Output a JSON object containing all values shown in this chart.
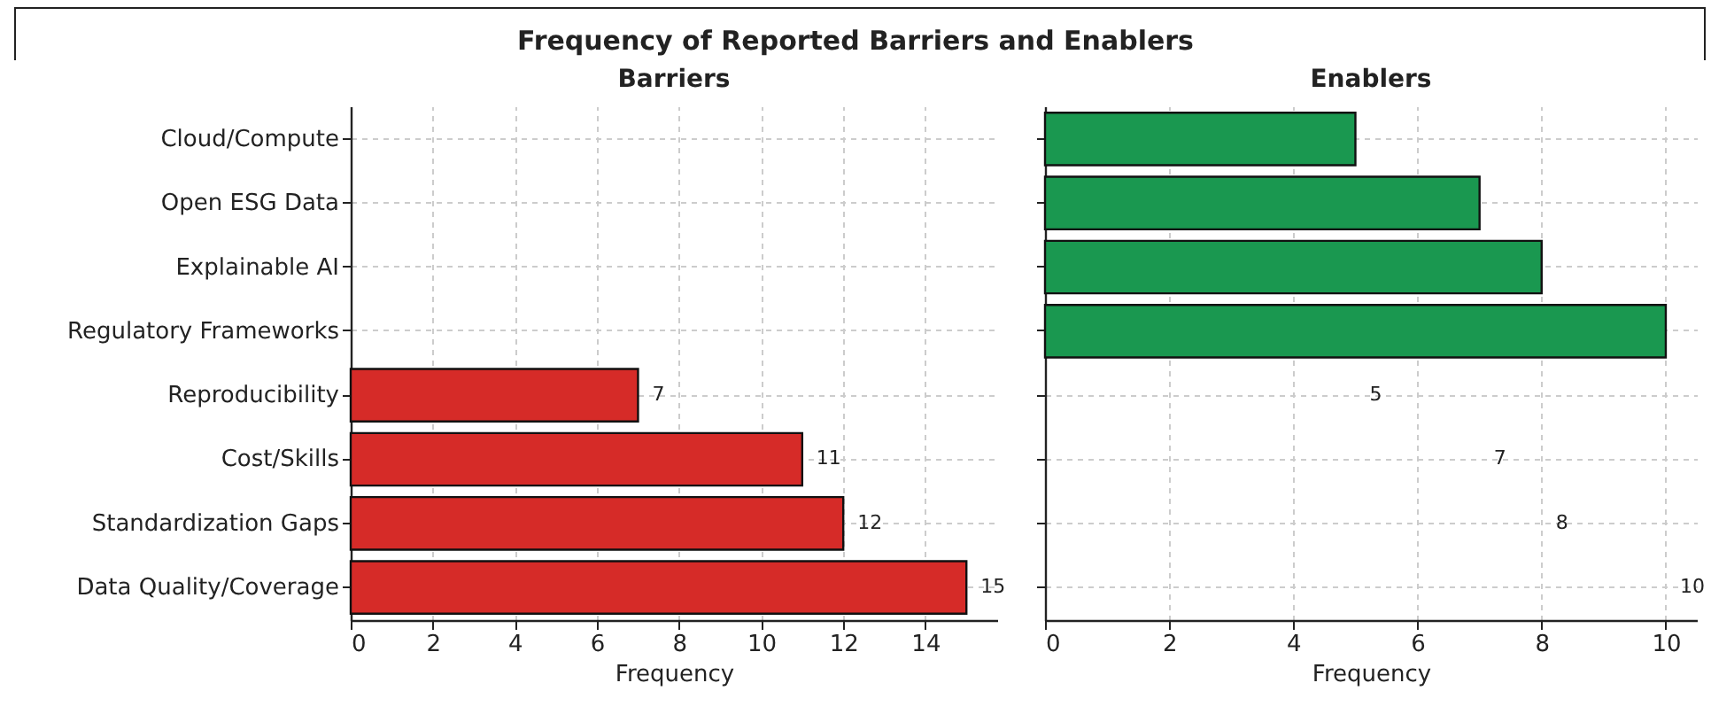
{
  "chart_data": [
    {
      "type": "bar",
      "orientation": "horizontal",
      "title": "Frequency of Reported Barriers and Enablers",
      "subtitle": "Barriers",
      "xlabel": "Frequency",
      "categories": [
        "Cloud/Compute",
        "Open ESG Data",
        "Explainable AI",
        "Regulatory Frameworks",
        "Reproducibility",
        "Cost/Skills",
        "Standardization Gaps",
        "Data Quality/Coverage"
      ],
      "values": [
        null,
        null,
        null,
        null,
        7,
        11,
        12,
        15
      ],
      "color": "#d62b28",
      "xlim": [
        0,
        15.75
      ],
      "xticks": [
        0,
        2,
        4,
        6,
        8,
        10,
        12,
        14
      ],
      "grid": true,
      "data_labels": true
    },
    {
      "type": "bar",
      "orientation": "horizontal",
      "subtitle": "Enablers",
      "xlabel": "Frequency",
      "categories": [
        null,
        null,
        null,
        null,
        null,
        null,
        null,
        null
      ],
      "values": [
        5,
        7,
        8,
        10,
        null,
        null,
        null,
        null
      ],
      "color": "#1a9850",
      "xlim": [
        0,
        10.5
      ],
      "xticks": [
        0,
        2,
        4,
        6,
        8,
        10
      ],
      "grid": true,
      "tick_labels": "x",
      "annotations": [
        "5",
        "7",
        "8",
        "10"
      ]
    }
  ]
}
